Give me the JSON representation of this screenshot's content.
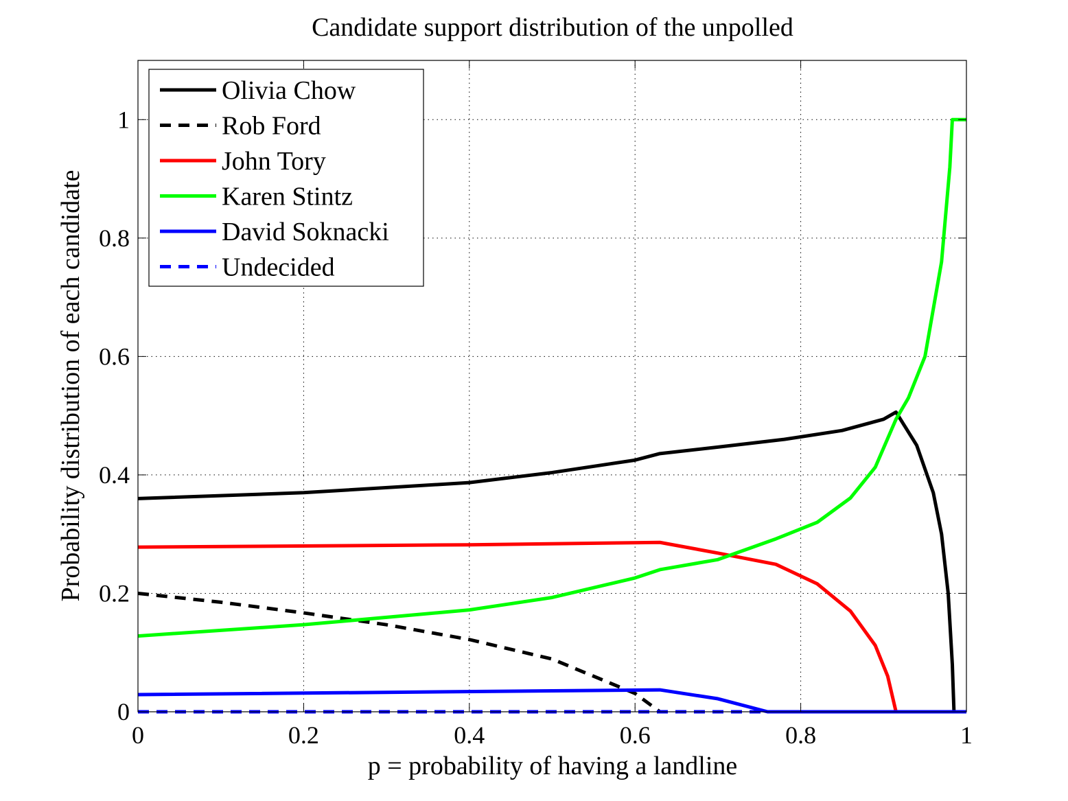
{
  "chart_data": {
    "type": "line",
    "title": "Candidate support distribution of the unpolled",
    "xlabel": "p = probability of having a landline",
    "ylabel": "Probability distribution of each candidate",
    "xlim": [
      0,
      1
    ],
    "ylim": [
      0,
      1.1
    ],
    "xticks": [
      0,
      0.2,
      0.4,
      0.6,
      0.8,
      1
    ],
    "xtick_labels": [
      "0",
      "0.2",
      "0.4",
      "0.6",
      "0.8",
      "1"
    ],
    "yticks": [
      0,
      0.2,
      0.4,
      0.6,
      0.8,
      1
    ],
    "ytick_labels": [
      "0",
      "0.2",
      "0.4",
      "0.6",
      "0.8",
      "1"
    ],
    "grid": true,
    "legend_position": "top-left",
    "series": [
      {
        "name": "Olivia Chow",
        "color": "#000000",
        "dash": "solid",
        "x": [
          0,
          0.2,
          0.4,
          0.5,
          0.6,
          0.63,
          0.7,
          0.78,
          0.85,
          0.9,
          0.915,
          0.94,
          0.96,
          0.97,
          0.978,
          0.983,
          0.985
        ],
        "y": [
          0.36,
          0.37,
          0.387,
          0.404,
          0.425,
          0.436,
          0.447,
          0.46,
          0.475,
          0.494,
          0.506,
          0.45,
          0.37,
          0.3,
          0.2,
          0.08,
          0
        ]
      },
      {
        "name": "Rob Ford",
        "color": "#000000",
        "dash": "dashed",
        "x": [
          0,
          0.1,
          0.2,
          0.3,
          0.4,
          0.5,
          0.6,
          0.63
        ],
        "y": [
          0.2,
          0.185,
          0.167,
          0.147,
          0.122,
          0.089,
          0.031,
          0
        ]
      },
      {
        "name": "John Tory",
        "color": "#ff0000",
        "dash": "solid",
        "x": [
          0,
          0.4,
          0.63,
          0.7,
          0.77,
          0.82,
          0.86,
          0.89,
          0.905,
          0.915,
          1
        ],
        "y": [
          0.278,
          0.282,
          0.286,
          0.268,
          0.249,
          0.216,
          0.17,
          0.112,
          0.06,
          0,
          0
        ]
      },
      {
        "name": "Karen Stintz",
        "color": "#00ff00",
        "dash": "solid",
        "x": [
          0,
          0.2,
          0.4,
          0.5,
          0.6,
          0.63,
          0.7,
          0.77,
          0.82,
          0.86,
          0.89,
          0.915,
          0.93,
          0.95,
          0.97,
          0.98,
          0.983,
          1
        ],
        "y": [
          0.128,
          0.147,
          0.172,
          0.193,
          0.226,
          0.24,
          0.257,
          0.292,
          0.32,
          0.361,
          0.413,
          0.494,
          0.53,
          0.6,
          0.76,
          0.92,
          1,
          1
        ]
      },
      {
        "name": "David Soknacki",
        "color": "#0000ff",
        "dash": "solid",
        "x": [
          0,
          0.63,
          0.7,
          0.76,
          1
        ],
        "y": [
          0.029,
          0.037,
          0.022,
          0,
          0
        ]
      },
      {
        "name": "Undecided",
        "color": "#0000ff",
        "dash": "dashed",
        "x": [
          0,
          1
        ],
        "y": [
          0,
          0
        ]
      }
    ]
  }
}
